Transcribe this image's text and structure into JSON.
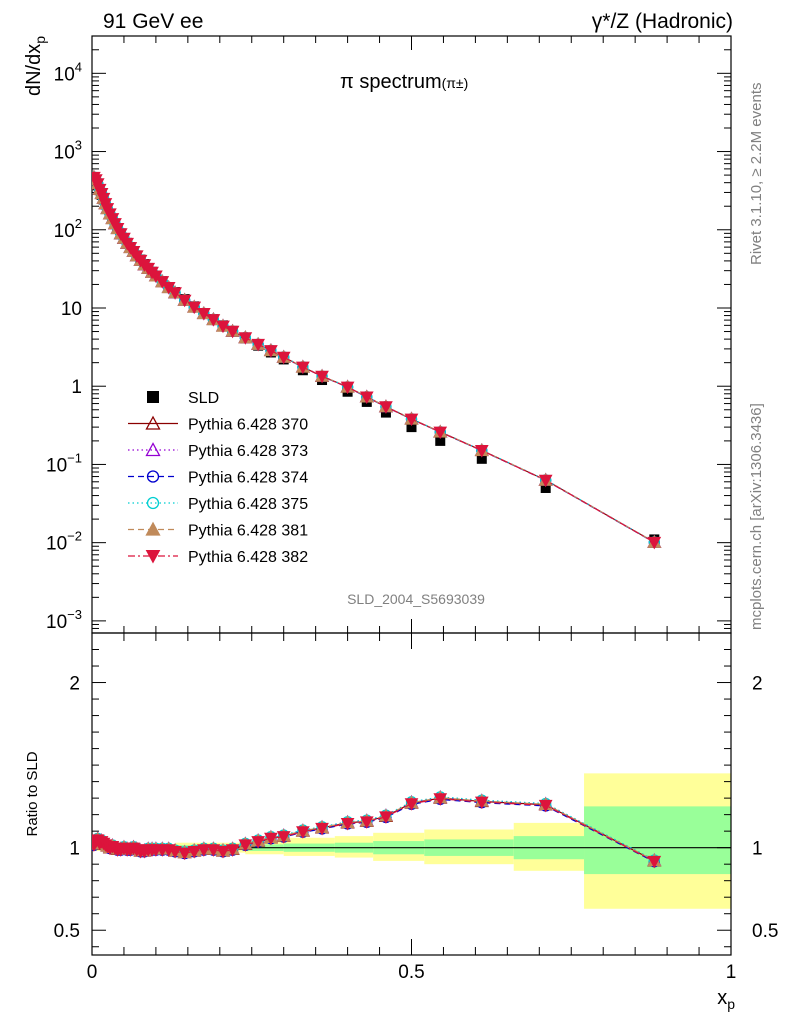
{
  "header": {
    "left": "91 GeV ee",
    "right": "γ*/Z (Hadronic)"
  },
  "side_labels": {
    "rivet": "Rivet 3.1.10, ≥ 2.2M events",
    "mcplots": "mcplots.cern.ch [arXiv:1306.3436]"
  },
  "plot_title": {
    "main": "π spectrum",
    "sub": "(π±)"
  },
  "watermark": "SLD_2004_S5693039",
  "chart_data": [
    {
      "type": "scatter",
      "panel": "main",
      "ylabel": "dN/dx",
      "ylabel_sub": "p",
      "yscale": "log",
      "xlim": [
        0,
        1
      ],
      "ylim": [
        0.0007,
        30000
      ],
      "y_ticks": [
        {
          "value": 10000,
          "label": "10",
          "exp": "4"
        },
        {
          "value": 1000,
          "label": "10",
          "exp": "3"
        },
        {
          "value": 100,
          "label": "10",
          "exp": "2"
        },
        {
          "value": 10,
          "label": "10",
          "exp": ""
        },
        {
          "value": 1,
          "label": "1",
          "exp": ""
        },
        {
          "value": 0.1,
          "label": "10",
          "exp": "−1"
        },
        {
          "value": 0.01,
          "label": "10",
          "exp": "−2"
        },
        {
          "value": 0.001,
          "label": "10",
          "exp": "−3"
        }
      ],
      "legend_position": "center-left",
      "x": [
        0.003,
        0.006,
        0.009,
        0.012,
        0.015,
        0.018,
        0.021,
        0.024,
        0.028,
        0.032,
        0.036,
        0.04,
        0.045,
        0.05,
        0.055,
        0.06,
        0.065,
        0.07,
        0.076,
        0.082,
        0.088,
        0.094,
        0.1,
        0.11,
        0.12,
        0.13,
        0.145,
        0.16,
        0.175,
        0.19,
        0.205,
        0.22,
        0.24,
        0.26,
        0.28,
        0.3,
        0.33,
        0.36,
        0.4,
        0.43,
        0.46,
        0.5,
        0.545,
        0.61,
        0.71,
        0.88
      ],
      "sld": [
        460,
        420,
        370,
        320,
        280,
        245,
        212,
        185,
        160,
        138,
        120,
        105,
        90,
        78,
        68,
        60,
        53,
        47,
        41.5,
        36.5,
        32.5,
        29,
        26,
        22,
        18.5,
        16,
        13,
        10.5,
        8.6,
        7.2,
        6.0,
        5.1,
        4.1,
        3.3,
        2.7,
        2.2,
        1.6,
        1.2,
        0.85,
        0.63,
        0.46,
        0.3,
        0.2,
        0.118,
        0.05,
        0.011
      ],
      "series": [
        {
          "name": "SLD",
          "marker": "square-filled",
          "color": "#000000",
          "dash": "none"
        },
        {
          "name": "Pythia 6.428 370",
          "marker": "triangle-open",
          "color": "#8b0000",
          "dash": "solid"
        },
        {
          "name": "Pythia 6.428 373",
          "marker": "triangle-open",
          "color": "#9400d3",
          "dash": "dotted"
        },
        {
          "name": "Pythia 6.428 374",
          "marker": "circle-open",
          "color": "#0000cd",
          "dash": "dashed"
        },
        {
          "name": "Pythia 6.428 375",
          "marker": "circle-open",
          "color": "#00ced1",
          "dash": "dotted"
        },
        {
          "name": "Pythia 6.428 381",
          "marker": "triangle-filled",
          "color": "#c08a5a",
          "dash": "dashed"
        },
        {
          "name": "Pythia 6.428 382",
          "marker": "triangle-down-filled",
          "color": "#dc143c",
          "dash": "dashdot"
        }
      ]
    },
    {
      "type": "line",
      "panel": "ratio",
      "ylabel": "Ratio to SLD",
      "xlabel": "x",
      "xlabel_sub": "p",
      "xlim": [
        0,
        1
      ],
      "ylim": [
        0.35,
        2.3
      ],
      "x_ticks": [
        {
          "value": 0,
          "label": "0"
        },
        {
          "value": 0.5,
          "label": "0.5"
        },
        {
          "value": 1,
          "label": "1"
        }
      ],
      "y_ticks": [
        {
          "value": 0.5,
          "label": "0.5"
        },
        {
          "value": 1,
          "label": "1"
        },
        {
          "value": 2,
          "label": "2"
        }
      ],
      "x": [
        0.003,
        0.006,
        0.009,
        0.012,
        0.015,
        0.018,
        0.021,
        0.024,
        0.028,
        0.032,
        0.036,
        0.04,
        0.045,
        0.05,
        0.055,
        0.06,
        0.065,
        0.07,
        0.076,
        0.082,
        0.088,
        0.094,
        0.1,
        0.11,
        0.12,
        0.13,
        0.145,
        0.16,
        0.175,
        0.19,
        0.205,
        0.22,
        0.24,
        0.26,
        0.28,
        0.3,
        0.33,
        0.36,
        0.4,
        0.43,
        0.46,
        0.5,
        0.545,
        0.61,
        0.71,
        0.88
      ],
      "ratio": [
        1.02,
        1.04,
        1.05,
        1.03,
        1.04,
        1.03,
        1.02,
        1.01,
        1.0,
        1.01,
        1.0,
        0.99,
        0.99,
        1.0,
        0.99,
        0.99,
        1.0,
        0.99,
        0.98,
        0.98,
        0.99,
        0.99,
        0.99,
        0.99,
        0.99,
        0.98,
        0.97,
        0.98,
        0.99,
        0.99,
        0.98,
        0.99,
        1.02,
        1.04,
        1.06,
        1.07,
        1.1,
        1.12,
        1.15,
        1.16,
        1.19,
        1.27,
        1.3,
        1.28,
        1.26,
        0.92
      ],
      "band_edges": [
        0.0,
        0.13,
        0.24,
        0.3,
        0.38,
        0.44,
        0.52,
        0.66,
        0.77,
        1.0
      ],
      "band_inner": [
        [
          0.99,
          1.01
        ],
        [
          0.985,
          1.015
        ],
        [
          0.98,
          1.02
        ],
        [
          0.975,
          1.025
        ],
        [
          0.97,
          1.03
        ],
        [
          0.96,
          1.04
        ],
        [
          0.95,
          1.05
        ],
        [
          0.93,
          1.07
        ],
        [
          0.84,
          1.25
        ]
      ],
      "band_outer": [
        [
          0.98,
          1.02
        ],
        [
          0.97,
          1.03
        ],
        [
          0.96,
          1.04
        ],
        [
          0.95,
          1.06
        ],
        [
          0.94,
          1.07
        ],
        [
          0.92,
          1.09
        ],
        [
          0.9,
          1.11
        ],
        [
          0.86,
          1.15
        ],
        [
          0.63,
          1.45
        ]
      ],
      "inner_color": "#99ff99",
      "outer_color": "#ffff99"
    }
  ]
}
